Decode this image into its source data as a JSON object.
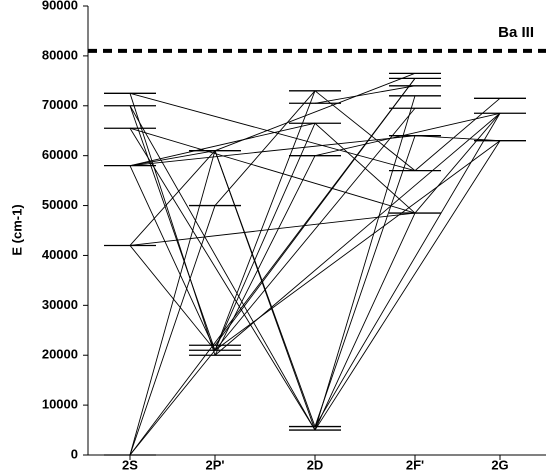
{
  "chart_data": {
    "type": "grotrian",
    "y_label": "E (cm-1)",
    "categories": [
      "2S",
      "2P'",
      "2D",
      "2F'",
      "2G"
    ],
    "ylim": [
      0,
      90000
    ],
    "yticks": [
      0,
      10000,
      20000,
      30000,
      40000,
      50000,
      60000,
      70000,
      80000,
      90000
    ],
    "limit": {
      "label": "Ba III",
      "value": 81000
    },
    "levels": [
      {
        "category": "2S",
        "values": [
          0,
          42000,
          58000,
          65500,
          70000,
          72500
        ]
      },
      {
        "category": "2P'",
        "values": [
          20000,
          21000,
          22000,
          50000,
          61000
        ]
      },
      {
        "category": "2D",
        "values": [
          5000,
          5700,
          60000,
          66500,
          70500,
          73000
        ]
      },
      {
        "category": "2F'",
        "values": [
          48500,
          57000,
          64000,
          69500,
          72000,
          74000,
          75500,
          76500
        ]
      },
      {
        "category": "2G",
        "values": [
          63000,
          68500,
          71500
        ]
      }
    ],
    "transitions": [
      {
        "from": "2S",
        "to": "2P'",
        "values": [
          0,
          21000
        ]
      },
      {
        "from": "2S",
        "to": "2P'",
        "values": [
          0,
          50000
        ]
      },
      {
        "from": "2S",
        "to": "2P'",
        "values": [
          0,
          61000
        ]
      },
      {
        "from": "2S",
        "to": "2P'",
        "values": [
          42000,
          21000
        ]
      },
      {
        "from": "2S",
        "to": "2P'",
        "values": [
          42000,
          61000
        ]
      },
      {
        "from": "2S",
        "to": "2F'",
        "values": [
          42000,
          48500
        ]
      },
      {
        "from": "2S",
        "to": "2P'",
        "values": [
          58000,
          21000
        ]
      },
      {
        "from": "2S",
        "to": "2P'",
        "values": [
          58000,
          61000
        ]
      },
      {
        "from": "2S",
        "to": "2F'",
        "values": [
          58000,
          64000
        ]
      },
      {
        "from": "2S",
        "to": "2D",
        "values": [
          58000,
          66500
        ]
      },
      {
        "from": "2S",
        "to": "2D",
        "values": [
          65500,
          5000
        ]
      },
      {
        "from": "2S",
        "to": "2F'",
        "values": [
          65500,
          48500
        ]
      },
      {
        "from": "2S",
        "to": "2P'",
        "values": [
          70000,
          21000
        ]
      },
      {
        "from": "2S",
        "to": "2D",
        "values": [
          70000,
          5000
        ]
      },
      {
        "from": "2S",
        "to": "2P'",
        "values": [
          72500,
          20000
        ]
      },
      {
        "from": "2S",
        "to": "2F'",
        "values": [
          72500,
          57000
        ]
      },
      {
        "from": "2P'",
        "to": "2D",
        "values": [
          21000,
          66500
        ]
      },
      {
        "from": "2P'",
        "to": "2D",
        "values": [
          21000,
          73000
        ]
      },
      {
        "from": "2P'",
        "to": "2F'",
        "values": [
          21000,
          69500
        ]
      },
      {
        "from": "2P'",
        "to": "2D",
        "values": [
          20000,
          60000
        ]
      },
      {
        "from": "2P'",
        "to": "2F'",
        "values": [
          22000,
          75500
        ]
      },
      {
        "from": "2P'",
        "to": "2D",
        "values": [
          50000,
          73000
        ]
      },
      {
        "from": "2P'",
        "to": "2D",
        "values": [
          61000,
          5000
        ]
      },
      {
        "from": "2P'",
        "to": "2F'",
        "values": [
          61000,
          76500
        ]
      },
      {
        "from": "2D",
        "to": "2F'",
        "values": [
          5000,
          48500
        ]
      },
      {
        "from": "2D",
        "to": "2F'",
        "values": [
          5000,
          72000
        ]
      },
      {
        "from": "2D",
        "to": "2F'",
        "values": [
          5700,
          64000
        ]
      },
      {
        "from": "2D",
        "to": "2P'",
        "values": [
          5700,
          61000
        ]
      },
      {
        "from": "2D",
        "to": "2G",
        "values": [
          5000,
          63000
        ]
      },
      {
        "from": "2D",
        "to": "2F'",
        "values": [
          73000,
          57000
        ]
      },
      {
        "from": "2D",
        "to": "2F'",
        "values": [
          66500,
          48500
        ]
      },
      {
        "from": "2D",
        "to": "2F'",
        "values": [
          70500,
          74000
        ]
      },
      {
        "from": "2D",
        "to": "2G",
        "values": [
          60000,
          68500
        ]
      },
      {
        "from": "2F'",
        "to": "2G",
        "values": [
          48500,
          68500
        ]
      },
      {
        "from": "2F'",
        "to": "2G",
        "values": [
          57000,
          71500
        ]
      },
      {
        "from": "2F'",
        "to": "2G",
        "values": [
          64000,
          63000
        ]
      },
      {
        "from": "2D",
        "to": "2G",
        "values": [
          5700,
          68500
        ]
      },
      {
        "from": "2P'",
        "to": "2G",
        "values": [
          21000,
          63000
        ]
      },
      {
        "from": "2P'",
        "to": "2G",
        "values": [
          20000,
          68500
        ]
      },
      {
        "from": "2S",
        "to": "2F'",
        "values": [
          0,
          75500
        ]
      }
    ]
  }
}
